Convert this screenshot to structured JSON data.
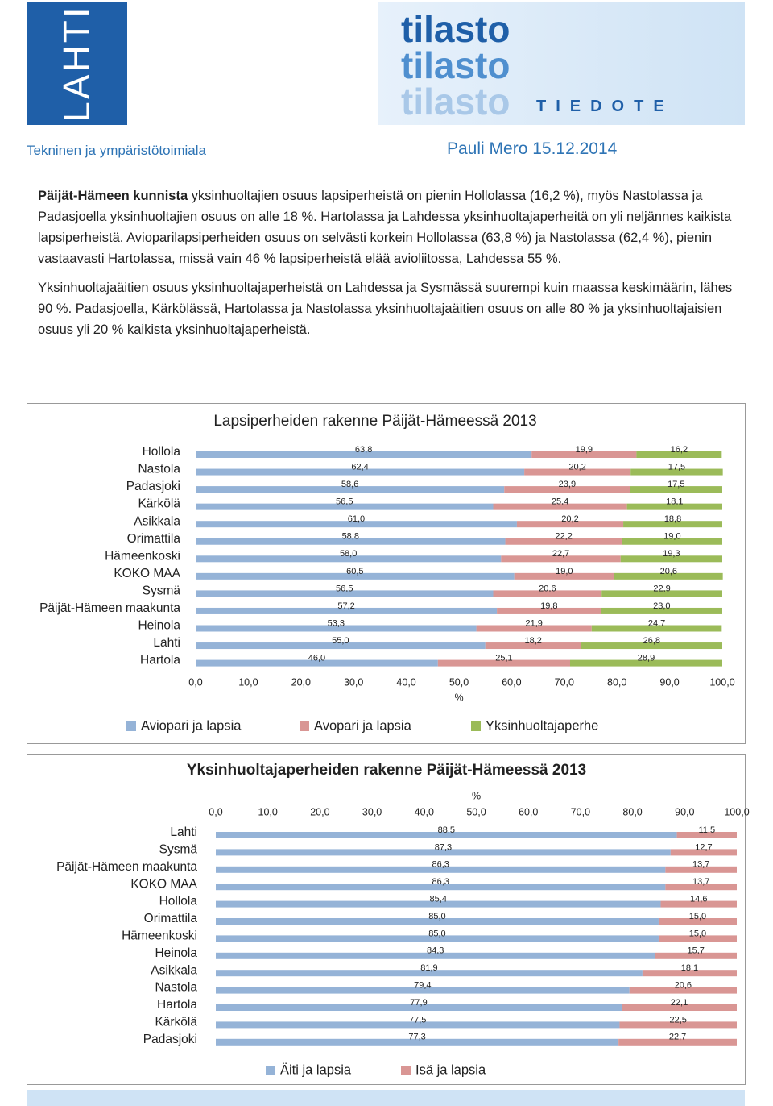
{
  "header": {
    "logo": "LAHTI",
    "banner_lines": [
      "tilasto",
      "tilasto",
      "tilasto"
    ],
    "banner_tag": "TIEDOTE",
    "department": "Tekninen ja ympäristötoimiala",
    "author_date": "Pauli Mero 15.12.2014"
  },
  "paragraphs": [
    {
      "lead": "Päijät-Hämeen kunnista",
      "text": " yksinhuoltajien osuus lapsiperheistä on pienin Hollolassa (16,2 %), myös Nastolassa ja Padasjoella yksinhuoltajien osuus on alle 18 %. Hartolassa ja Lahdessa yksinhuoltajaperheitä on yli neljännes kaikista lapsiperheistä. Avioparilapsiperheiden osuus on selvästi korkein Hollolassa (63,8 %) ja Nastolassa (62,4 %), pienin vastaavasti Hartolassa, missä vain 46 % lapsiperheistä elää avioliitossa, Lahdessa 55 %."
    },
    {
      "text": "Yksinhuoltajaäitien osuus yksinhuoltajaperheistä on Lahdessa ja Sysmässä suurempi kuin maassa keskimäärin, lähes 90 %. Padasjoella, Kärkölässä, Hartolassa ja Nastolassa yksinhuoltajaäitien osuus on alle 80 % ja yksinhuoltajaisien osuus yli 20 % kaikista yksinhuoltajaperheistä."
    }
  ],
  "chart_data": [
    {
      "type": "bar",
      "orientation": "horizontal",
      "stacked": true,
      "title": "Lapsiperheiden rakenne Päijät-Hämeessä 2013",
      "x_label": "%",
      "x_axis_position": "bottom",
      "categories": [
        "Hollola",
        "Nastola",
        "Padasjoki",
        "Kärkölä",
        "Asikkala",
        "Orimattila",
        "Hämeenkoski",
        "KOKO MAA",
        "Sysmä",
        "Päijät-Hämeen maakunta",
        "Heinola",
        "Lahti",
        "Hartola"
      ],
      "series": [
        {
          "name": "Aviopari ja lapsia",
          "color": "#95b3d7",
          "values": [
            63.8,
            62.4,
            58.6,
            56.5,
            61.0,
            58.8,
            58.0,
            60.5,
            56.5,
            57.2,
            53.3,
            55.0,
            46.0
          ],
          "value_labels": [
            "63,8",
            "62,4",
            "58,6",
            "56,5",
            "61,0",
            "58,8",
            "58,0",
            "60,5",
            "56,5",
            "57,2",
            "53,3",
            "55,0",
            "46,0"
          ]
        },
        {
          "name": "Avopari ja lapsia",
          "color": "#d99694",
          "values": [
            19.9,
            20.2,
            23.9,
            25.4,
            20.2,
            22.2,
            22.7,
            19.0,
            20.6,
            19.8,
            21.9,
            18.2,
            25.1
          ],
          "value_labels": [
            "19,9",
            "20,2",
            "23,9",
            "25,4",
            "20,2",
            "22,2",
            "22,7",
            "19,0",
            "20,6",
            "19,8",
            "21,9",
            "18,2",
            "25,1"
          ]
        },
        {
          "name": "Yksinhuoltajaperhe",
          "color": "#9bbb59",
          "values": [
            16.2,
            17.5,
            17.5,
            18.1,
            18.8,
            19.0,
            19.3,
            20.6,
            22.9,
            23.0,
            24.7,
            26.8,
            28.9
          ],
          "value_labels": [
            "16,2",
            "17,5",
            "17,5",
            "18,1",
            "18,8",
            "19,0",
            "19,3",
            "20,6",
            "22,9",
            "23,0",
            "24,7",
            "26,8",
            "28,9"
          ]
        }
      ],
      "xlim": [
        0,
        100
      ],
      "xticks": [
        {
          "value": 0,
          "label": "0,0"
        },
        {
          "value": 10,
          "label": "10,0"
        },
        {
          "value": 20,
          "label": "20,0"
        },
        {
          "value": 30,
          "label": "30,0"
        },
        {
          "value": 40,
          "label": "40,0"
        },
        {
          "value": 50,
          "label": "50,0"
        },
        {
          "value": 60,
          "label": "60,0"
        },
        {
          "value": 70,
          "label": "70,0"
        },
        {
          "value": 80,
          "label": "80,0"
        },
        {
          "value": 90,
          "label": "90,0"
        },
        {
          "value": 100,
          "label": "100,0"
        }
      ]
    },
    {
      "type": "bar",
      "orientation": "horizontal",
      "stacked": true,
      "title": "Yksinhuoltajaperheiden rakenne Päijät-Hämeessä 2013",
      "x_label": "%",
      "x_axis_position": "top",
      "categories": [
        "Lahti",
        "Sysmä",
        "Päijät-Hämeen maakunta",
        "KOKO MAA",
        "Hollola",
        "Orimattila",
        "Hämeenkoski",
        "Heinola",
        "Asikkala",
        "Nastola",
        "Hartola",
        "Kärkölä",
        "Padasjoki"
      ],
      "series": [
        {
          "name": "Äiti ja lapsia",
          "color": "#95b3d7",
          "values": [
            88.5,
            87.3,
            86.3,
            86.3,
            85.4,
            85.0,
            85.0,
            84.3,
            81.9,
            79.4,
            77.9,
            77.5,
            77.3
          ],
          "value_labels": [
            "88,5",
            "87,3",
            "86,3",
            "86,3",
            "85,4",
            "85,0",
            "85,0",
            "84,3",
            "81,9",
            "79,4",
            "77,9",
            "77,5",
            "77,3"
          ]
        },
        {
          "name": "Isä ja lapsia",
          "color": "#d99694",
          "values": [
            11.5,
            12.7,
            13.7,
            13.7,
            14.6,
            15.0,
            15.0,
            15.7,
            18.1,
            20.6,
            22.1,
            22.5,
            22.7
          ],
          "value_labels": [
            "11,5",
            "12,7",
            "13,7",
            "13,7",
            "14,6",
            "15,0",
            "15,0",
            "15,7",
            "18,1",
            "20,6",
            "22,1",
            "22,5",
            "22,7"
          ]
        }
      ],
      "xlim": [
        0,
        100
      ],
      "xticks": [
        {
          "value": 0,
          "label": "0,0"
        },
        {
          "value": 10,
          "label": "10,0"
        },
        {
          "value": 20,
          "label": "20,0"
        },
        {
          "value": 30,
          "label": "30,0"
        },
        {
          "value": 40,
          "label": "40,0"
        },
        {
          "value": 50,
          "label": "50,0"
        },
        {
          "value": 60,
          "label": "60,0"
        },
        {
          "value": 70,
          "label": "70,0"
        },
        {
          "value": 80,
          "label": "80,0"
        },
        {
          "value": 90,
          "label": "90,0"
        },
        {
          "value": 100,
          "label": "100,0"
        }
      ]
    }
  ]
}
